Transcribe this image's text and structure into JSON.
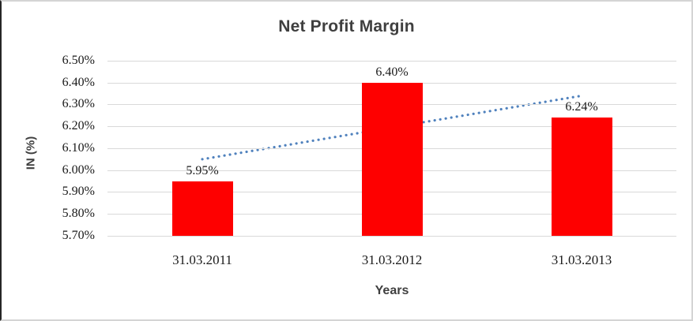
{
  "chart_data": {
    "type": "bar",
    "title": "Net Profit Margin",
    "xlabel": "Years",
    "ylabel": "IN (%)",
    "categories": [
      "31.03.2011",
      "31.03.2012",
      "31.03.2013"
    ],
    "values": [
      5.95,
      6.4,
      6.24
    ],
    "data_labels": [
      "5.95%",
      "6.40%",
      "6.24%"
    ],
    "unit": "percent",
    "ylim": [
      5.7,
      6.5
    ],
    "ytick_step": 0.1,
    "ytick_labels": [
      "5.70%",
      "5.80%",
      "5.90%",
      "6.00%",
      "6.10%",
      "6.20%",
      "6.30%",
      "6.40%",
      "6.50%"
    ],
    "grid": true,
    "legend": false,
    "bar_color": "#fe0000",
    "gridline_color": "#d9d9d9",
    "title_color": "#3f3f3f",
    "label_color": "#1a1a1a",
    "trendline": {
      "type": "linear",
      "style": "dotted",
      "color": "#4f81bd",
      "start_value": 6.05,
      "end_value": 6.34
    }
  }
}
